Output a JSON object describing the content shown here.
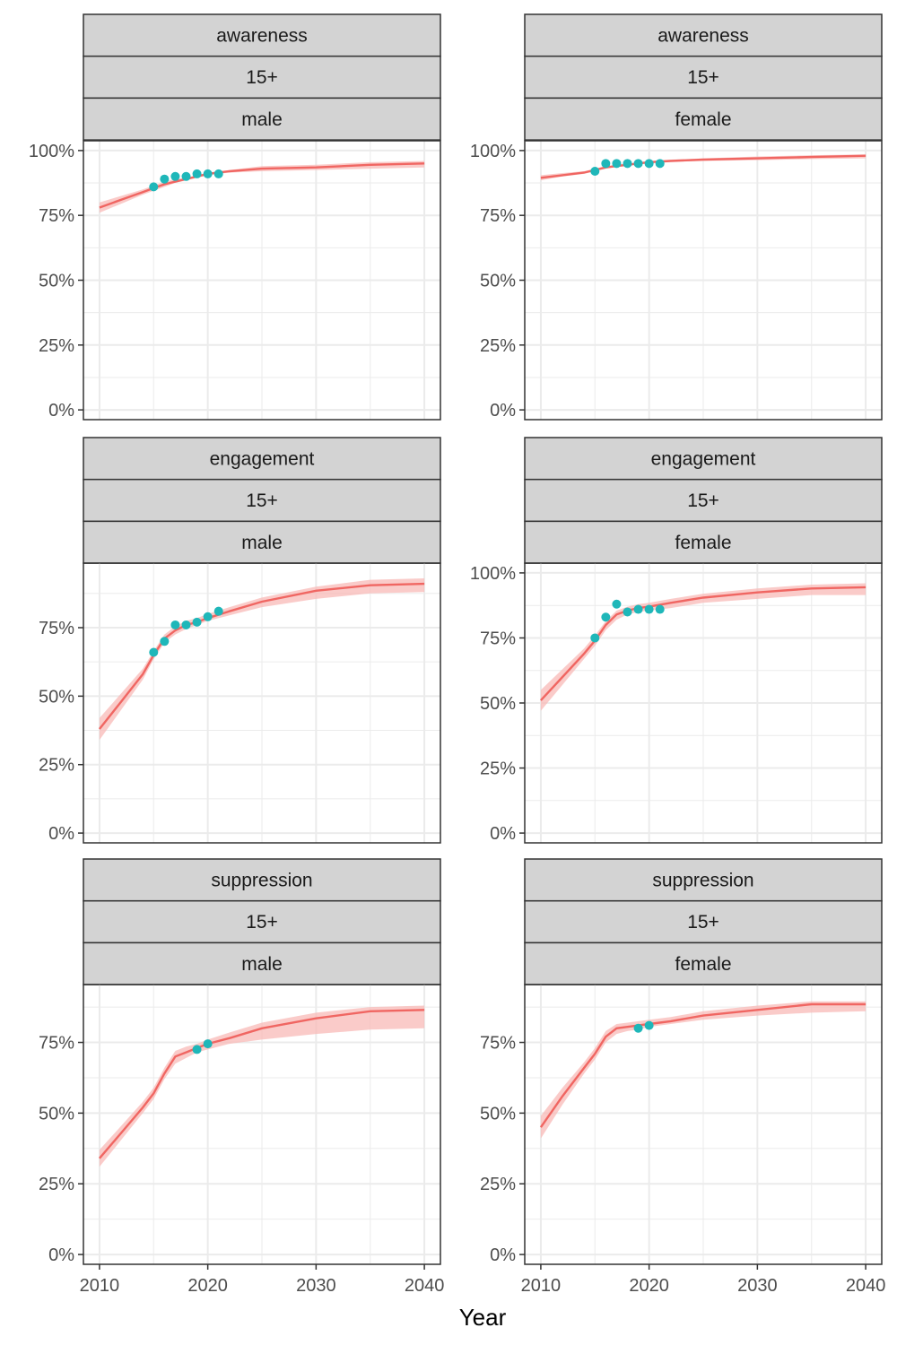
{
  "colors": {
    "fit_line": "#f06662",
    "fit_band": "#f8b9b7",
    "observed_points": "#1fb7b9"
  },
  "xlabel": "Year",
  "chart_data": [
    {
      "type": "line",
      "strips": [
        "awareness",
        "15+",
        "male"
      ],
      "xlim": [
        2010,
        2040
      ],
      "ylim": [
        0,
        1
      ],
      "x_ticks": [
        2010,
        2020,
        2030,
        2040
      ],
      "y_ticks": [
        0,
        0.25,
        0.5,
        0.75,
        1.0
      ],
      "y_tick_labels": [
        "0%",
        "25%",
        "50%",
        "75%",
        "100%"
      ],
      "fit": {
        "x": [
          2010,
          2012,
          2014,
          2015,
          2016,
          2017,
          2018,
          2019,
          2020,
          2022,
          2025,
          2030,
          2035,
          2040
        ],
        "y": [
          0.78,
          0.81,
          0.84,
          0.855,
          0.87,
          0.88,
          0.89,
          0.9,
          0.91,
          0.92,
          0.93,
          0.935,
          0.945,
          0.95
        ],
        "lower": [
          0.76,
          0.795,
          0.83,
          0.845,
          0.86,
          0.875,
          0.885,
          0.895,
          0.905,
          0.915,
          0.92,
          0.925,
          0.93,
          0.935
        ],
        "upper": [
          0.8,
          0.825,
          0.85,
          0.865,
          0.88,
          0.89,
          0.895,
          0.905,
          0.915,
          0.925,
          0.94,
          0.945,
          0.955,
          0.96
        ]
      },
      "observed": {
        "x": [
          2015,
          2016,
          2017,
          2018,
          2019,
          2020,
          2021
        ],
        "y": [
          0.86,
          0.89,
          0.9,
          0.9,
          0.91,
          0.91,
          0.91
        ]
      }
    },
    {
      "type": "line",
      "strips": [
        "awareness",
        "15+",
        "female"
      ],
      "xlim": [
        2010,
        2040
      ],
      "ylim": [
        0,
        1
      ],
      "x_ticks": [
        2010,
        2020,
        2030,
        2040
      ],
      "y_ticks": [
        0,
        0.25,
        0.5,
        0.75,
        1.0
      ],
      "y_tick_labels": [
        "0%",
        "25%",
        "50%",
        "75%",
        "100%"
      ],
      "fit": {
        "x": [
          2010,
          2012,
          2014,
          2015,
          2016,
          2017,
          2018,
          2019,
          2020,
          2022,
          2025,
          2030,
          2035,
          2040
        ],
        "y": [
          0.895,
          0.905,
          0.915,
          0.925,
          0.935,
          0.94,
          0.945,
          0.95,
          0.955,
          0.96,
          0.965,
          0.97,
          0.975,
          0.98
        ],
        "lower": [
          0.885,
          0.9,
          0.91,
          0.92,
          0.93,
          0.937,
          0.942,
          0.947,
          0.952,
          0.957,
          0.96,
          0.963,
          0.967,
          0.97
        ],
        "upper": [
          0.905,
          0.913,
          0.92,
          0.93,
          0.94,
          0.945,
          0.95,
          0.955,
          0.96,
          0.965,
          0.97,
          0.977,
          0.982,
          0.985
        ]
      },
      "observed": {
        "x": [
          2015,
          2016,
          2017,
          2018,
          2019,
          2020,
          2021
        ],
        "y": [
          0.92,
          0.95,
          0.95,
          0.95,
          0.95,
          0.95,
          0.95
        ]
      }
    },
    {
      "type": "line",
      "strips": [
        "engagement",
        "15+",
        "male"
      ],
      "xlim": [
        2010,
        2040
      ],
      "ylim": [
        0,
        1
      ],
      "x_ticks": [
        2010,
        2020,
        2030,
        2040
      ],
      "y_ticks": [
        0,
        0.25,
        0.5,
        0.75
      ],
      "y_tick_labels": [
        "0%",
        "25%",
        "50%",
        "75%"
      ],
      "fit": {
        "x": [
          2010,
          2012,
          2014,
          2015,
          2016,
          2017,
          2018,
          2019,
          2020,
          2022,
          2025,
          2030,
          2035,
          2040
        ],
        "y": [
          0.38,
          0.48,
          0.58,
          0.65,
          0.71,
          0.74,
          0.76,
          0.77,
          0.785,
          0.81,
          0.845,
          0.885,
          0.905,
          0.91
        ],
        "lower": [
          0.34,
          0.45,
          0.56,
          0.635,
          0.695,
          0.725,
          0.745,
          0.76,
          0.775,
          0.795,
          0.825,
          0.855,
          0.875,
          0.88
        ],
        "upper": [
          0.42,
          0.51,
          0.6,
          0.665,
          0.725,
          0.755,
          0.775,
          0.785,
          0.8,
          0.825,
          0.86,
          0.9,
          0.925,
          0.93
        ]
      },
      "observed": {
        "x": [
          2015,
          2016,
          2017,
          2018,
          2019,
          2020,
          2021
        ],
        "y": [
          0.66,
          0.7,
          0.76,
          0.76,
          0.77,
          0.79,
          0.81
        ]
      }
    },
    {
      "type": "line",
      "strips": [
        "engagement",
        "15+",
        "female"
      ],
      "xlim": [
        2010,
        2040
      ],
      "ylim": [
        0,
        1
      ],
      "x_ticks": [
        2010,
        2020,
        2030,
        2040
      ],
      "y_ticks": [
        0,
        0.25,
        0.5,
        0.75,
        1.0
      ],
      "y_tick_labels": [
        "0%",
        "25%",
        "50%",
        "75%",
        "100%"
      ],
      "fit": {
        "x": [
          2010,
          2012,
          2014,
          2015,
          2016,
          2017,
          2018,
          2019,
          2020,
          2022,
          2025,
          2030,
          2035,
          2040
        ],
        "y": [
          0.51,
          0.6,
          0.69,
          0.74,
          0.8,
          0.84,
          0.855,
          0.865,
          0.87,
          0.885,
          0.905,
          0.925,
          0.94,
          0.945
        ],
        "lower": [
          0.47,
          0.57,
          0.67,
          0.72,
          0.78,
          0.82,
          0.84,
          0.85,
          0.855,
          0.865,
          0.885,
          0.9,
          0.915,
          0.915
        ],
        "upper": [
          0.55,
          0.63,
          0.71,
          0.76,
          0.815,
          0.855,
          0.87,
          0.88,
          0.885,
          0.9,
          0.92,
          0.94,
          0.955,
          0.96
        ]
      },
      "observed": {
        "x": [
          2015,
          2016,
          2017,
          2018,
          2019,
          2020,
          2021
        ],
        "y": [
          0.75,
          0.83,
          0.88,
          0.85,
          0.86,
          0.86,
          0.86
        ]
      }
    },
    {
      "type": "line",
      "strips": [
        "suppression",
        "15+",
        "male"
      ],
      "xlim": [
        2010,
        2040
      ],
      "ylim": [
        0,
        1
      ],
      "x_ticks": [
        2010,
        2020,
        2030,
        2040
      ],
      "y_ticks": [
        0,
        0.25,
        0.5,
        0.75
      ],
      "y_tick_labels": [
        "0%",
        "25%",
        "50%",
        "75%"
      ],
      "fit": {
        "x": [
          2010,
          2012,
          2014,
          2015,
          2016,
          2017,
          2018,
          2019,
          2020,
          2022,
          2025,
          2030,
          2035,
          2040
        ],
        "y": [
          0.34,
          0.43,
          0.52,
          0.57,
          0.64,
          0.7,
          0.715,
          0.73,
          0.745,
          0.765,
          0.8,
          0.835,
          0.86,
          0.865
        ],
        "lower": [
          0.31,
          0.405,
          0.5,
          0.55,
          0.62,
          0.675,
          0.695,
          0.715,
          0.725,
          0.745,
          0.76,
          0.78,
          0.795,
          0.8
        ],
        "upper": [
          0.37,
          0.455,
          0.54,
          0.59,
          0.66,
          0.72,
          0.735,
          0.745,
          0.76,
          0.785,
          0.82,
          0.855,
          0.875,
          0.88
        ]
      },
      "observed": {
        "x": [
          2019,
          2020
        ],
        "y": [
          0.725,
          0.745
        ]
      }
    },
    {
      "type": "line",
      "strips": [
        "suppression",
        "15+",
        "female"
      ],
      "xlim": [
        2010,
        2040
      ],
      "ylim": [
        0,
        1
      ],
      "x_ticks": [
        2010,
        2020,
        2030,
        2040
      ],
      "y_ticks": [
        0,
        0.25,
        0.5,
        0.75
      ],
      "y_tick_labels": [
        "0%",
        "25%",
        "50%",
        "75%"
      ],
      "fit": {
        "x": [
          2010,
          2012,
          2014,
          2015,
          2016,
          2017,
          2018,
          2019,
          2020,
          2022,
          2025,
          2030,
          2035,
          2040
        ],
        "y": [
          0.45,
          0.56,
          0.66,
          0.71,
          0.77,
          0.8,
          0.805,
          0.81,
          0.815,
          0.825,
          0.845,
          0.865,
          0.885,
          0.885
        ],
        "lower": [
          0.41,
          0.53,
          0.64,
          0.69,
          0.75,
          0.78,
          0.79,
          0.795,
          0.805,
          0.815,
          0.83,
          0.845,
          0.855,
          0.86
        ],
        "upper": [
          0.49,
          0.59,
          0.68,
          0.73,
          0.79,
          0.815,
          0.82,
          0.825,
          0.83,
          0.84,
          0.86,
          0.88,
          0.895,
          0.895
        ]
      },
      "observed": {
        "x": [
          2019,
          2020
        ],
        "y": [
          0.8,
          0.81
        ]
      }
    }
  ]
}
